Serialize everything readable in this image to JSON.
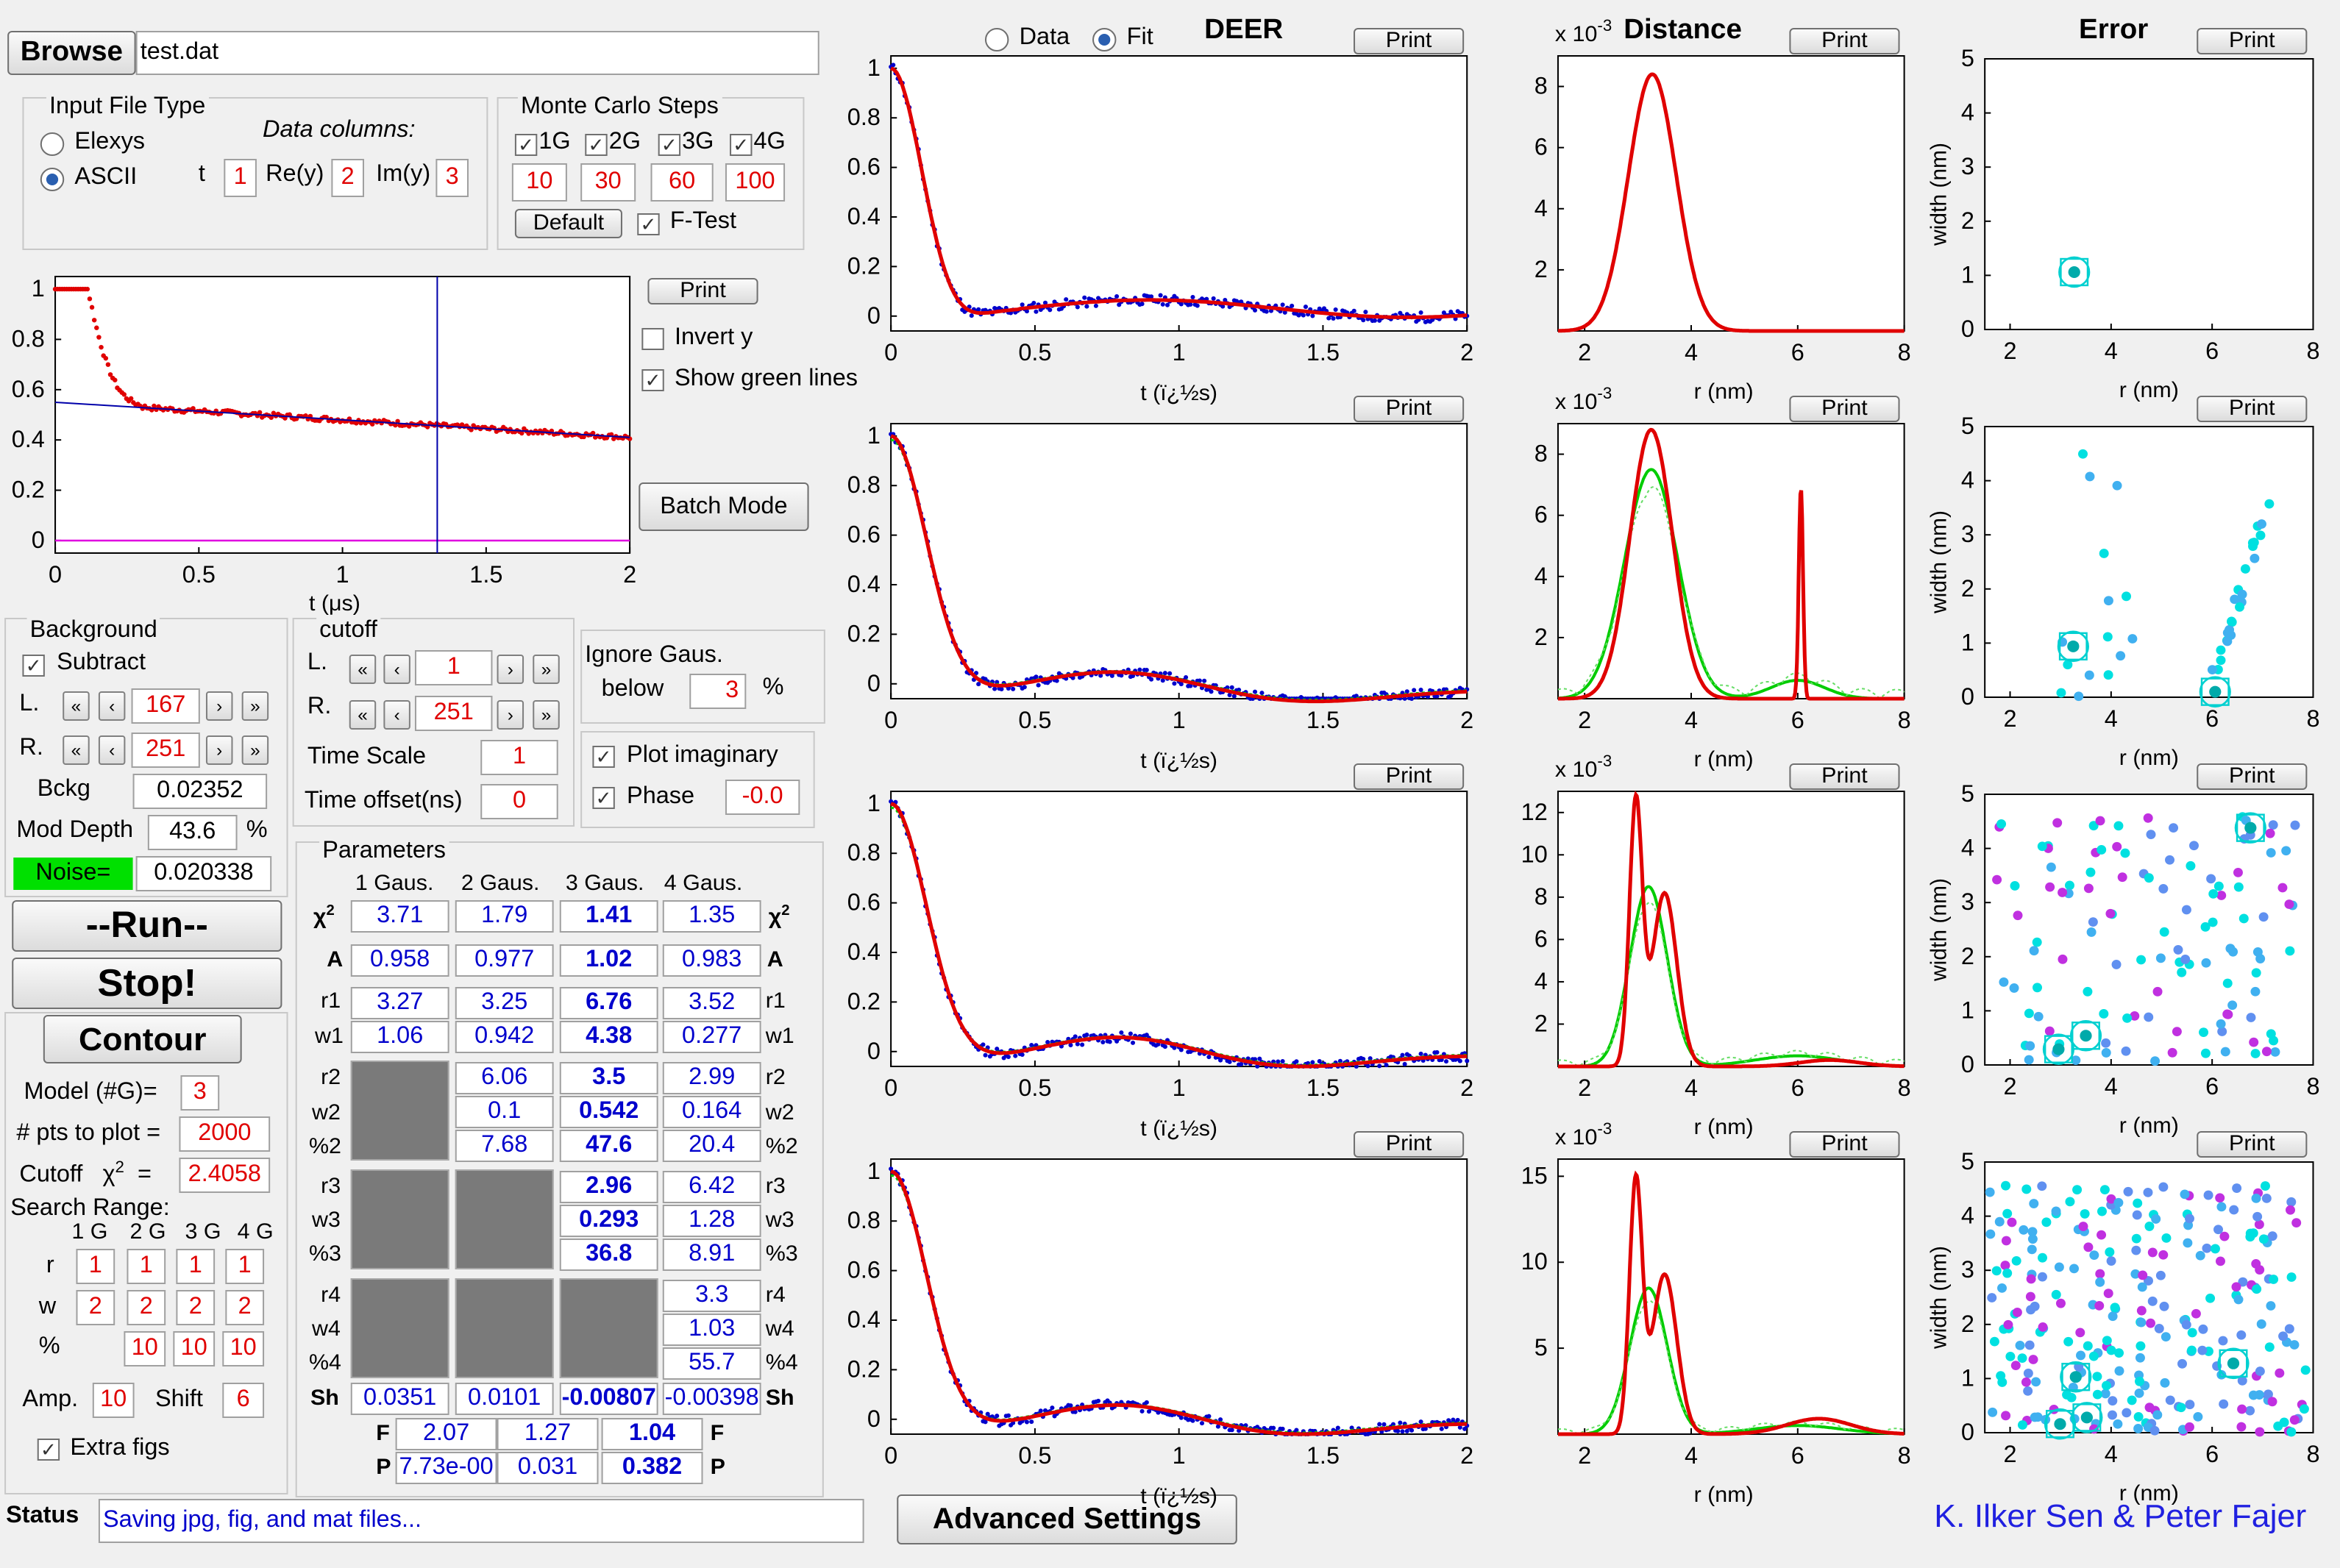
{
  "file": {
    "browse_label": "Browse",
    "filename": "test.dat"
  },
  "input_type": {
    "title": "Input File Type",
    "option1": "Elexys",
    "option2": "ASCII",
    "columns_title": "Data columns:",
    "t_label": "t",
    "re_label": "Re(y)",
    "im_label": "Im(y)",
    "t_val": "1",
    "re_val": "2",
    "im_val": "3"
  },
  "monte_carlo": {
    "title": "Monte Carlo Steps",
    "g1": "1G",
    "g2": "2G",
    "g3": "3G",
    "g4": "4G",
    "v1": "10",
    "v2": "30",
    "v3": "60",
    "v4": "100",
    "default_label": "Default",
    "ftest_label": "F-Test"
  },
  "raw_plot": {
    "print_label": "Print",
    "invert_label": "Invert y",
    "green_label": "Show green lines",
    "batch_label": "Batch Mode",
    "xlabel": "t (μs)"
  },
  "background": {
    "title": "Background",
    "subtract_label": "Subtract",
    "L_label": "L.",
    "L_val": "167",
    "R_label": "R.",
    "R_val": "251",
    "bckg_label": "Bckg",
    "bckg_val": "0.02352",
    "mod_label": "Mod Depth",
    "mod_val": "43.6",
    "pct": "%",
    "noise_label": "Noise=",
    "noise_val": "0.020338"
  },
  "cutoff": {
    "title": "cutoff",
    "L_label": "L.",
    "L_val": "1",
    "R_label": "R.",
    "R_val": "251",
    "ts_label": "Time Scale",
    "ts_val": "1",
    "to_label": "Time offset(ns)",
    "to_val": "0"
  },
  "ignore": {
    "title": "Ignore Gaus.",
    "below": "below",
    "val": "3",
    "pct": "%"
  },
  "options": {
    "plot_imag_label": "Plot imaginary",
    "phase_label": "Phase",
    "phase_val": "-0.0"
  },
  "controls": {
    "run": "--Run--",
    "stop": "Stop!",
    "contour": "Contour",
    "model_label": "Model (#G)=",
    "model_val": "3",
    "pts_label": "# pts to plot =",
    "pts_val": "2000",
    "cutoff_label": "Cutoff",
    "chi": "χ",
    "chi_sup": "2",
    "cutoff_eq": "=",
    "cutoff_val": "2.4058",
    "search_label": "Search Range:",
    "sr_headers": [
      "1 G",
      "2 G",
      "3 G",
      "4 G"
    ],
    "r_label": "r",
    "w_label": "w",
    "pc_label": "%",
    "sr_r": [
      "1",
      "1",
      "1",
      "1"
    ],
    "sr_w": [
      "2",
      "2",
      "2",
      "2"
    ],
    "sr_p": [
      "10",
      "10",
      "10"
    ],
    "amp_label": "Amp.",
    "amp_val": "10",
    "shift_label": "Shift",
    "shift_val": "6",
    "extra_label": "Extra figs"
  },
  "params": {
    "title": "Parameters",
    "headers": [
      "1 Gaus.",
      "2 Gaus.",
      "3 Gaus.",
      "4 Gaus."
    ],
    "chi2": [
      "3.71",
      "1.79",
      "1.41",
      "1.35"
    ],
    "A": [
      "0.958",
      "0.977",
      "1.02",
      "0.983"
    ],
    "r1": [
      "3.27",
      "3.25",
      "6.76",
      "3.52"
    ],
    "w1": [
      "1.06",
      "0.942",
      "4.38",
      "0.277"
    ],
    "r2": [
      "6.06",
      "3.5",
      "2.99"
    ],
    "w2": [
      "0.1",
      "0.542",
      "0.164"
    ],
    "p2": [
      "7.68",
      "47.6",
      "20.4"
    ],
    "r3": [
      "2.96",
      "6.42"
    ],
    "w3": [
      "0.293",
      "1.28"
    ],
    "p3": [
      "36.8",
      "8.91"
    ],
    "r4": [
      "3.3"
    ],
    "w4": [
      "1.03"
    ],
    "p4": [
      "55.7"
    ],
    "Sh": [
      "0.0351",
      "0.0101",
      "-0.00807",
      "-0.00398"
    ],
    "F": [
      "2.07",
      "1.27",
      "1.04"
    ],
    "P": [
      "7.73e-00",
      "0.031",
      "0.382"
    ],
    "row_labels": {
      "chi": "χ",
      "chi_sup": "2",
      "A": "A",
      "r1": "r1",
      "w1": "w1",
      "r2": "r2",
      "w2": "w2",
      "p2": "%2",
      "r3": "r3",
      "w3": "w3",
      "p3": "%3",
      "r4": "r4",
      "w4": "w4",
      "p4": "%4",
      "Sh": "Sh",
      "F": "F",
      "P": "P"
    }
  },
  "plots": {
    "data_label": "Data",
    "fit_label": "Fit",
    "deer_title": "DEER",
    "dist_title": "Distance",
    "err_title": "Error",
    "print_label": "Print",
    "deer_xlabel": "t (ï¿½s)",
    "dist_xlabel": "r (nm)",
    "err_xlabel": "r (nm)",
    "err_ylabel": "width (nm)",
    "scale_prefix": "x 10",
    "scale_exp": "-3"
  },
  "status": {
    "label": "Status",
    "text": "Saving jpg, fig, and mat files...",
    "advanced": "Advanced Settings",
    "credits": "K. Ilker Sen & Peter Fajer"
  }
}
